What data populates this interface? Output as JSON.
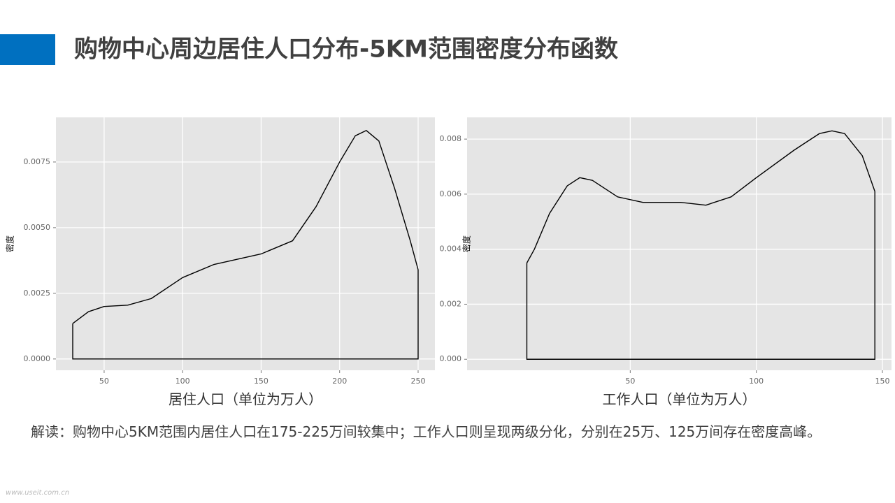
{
  "header": {
    "title": "购物中心周边居住人口分布-5KM范围密度分布函数"
  },
  "chart_data": [
    {
      "type": "line",
      "x_label": "居住人口（单位为万人）",
      "y_label": "密度",
      "color": "#000000",
      "grid": true,
      "x": [
        30,
        40,
        50,
        65,
        80,
        100,
        120,
        150,
        170,
        185,
        200,
        210,
        217,
        225,
        235,
        245,
        250
      ],
      "values": [
        0.00135,
        0.0018,
        0.002,
        0.00205,
        0.0023,
        0.0031,
        0.0036,
        0.004,
        0.0045,
        0.0058,
        0.0075,
        0.0085,
        0.0087,
        0.0083,
        0.0065,
        0.0045,
        0.0034
      ],
      "xlim": [
        19.3,
        260.7
      ],
      "ylim": [
        -0.00043,
        0.0092
      ],
      "xticks": [
        50,
        100,
        150,
        200,
        250
      ],
      "yticks": [
        {
          "value": 0,
          "label": "0.0000"
        },
        {
          "value": 0.0025,
          "label": "0.0025"
        },
        {
          "value": 0.005,
          "label": "0.0050"
        },
        {
          "value": 0.0075,
          "label": "0.0075"
        }
      ]
    },
    {
      "type": "line",
      "x_label": "工作人口（单位为万人）",
      "y_label": "密度",
      "color": "#000000",
      "grid": true,
      "x": [
        9,
        12,
        18,
        25,
        30,
        35,
        45,
        55,
        70,
        80,
        90,
        100,
        115,
        125,
        130,
        135,
        142,
        147
      ],
      "values": [
        0.0035,
        0.004,
        0.0053,
        0.0063,
        0.0066,
        0.0065,
        0.0059,
        0.0057,
        0.0057,
        0.0056,
        0.0059,
        0.0066,
        0.0076,
        0.0082,
        0.0083,
        0.0082,
        0.0074,
        0.0061
      ],
      "xlim": [
        -14.7,
        153.6
      ],
      "ylim": [
        -0.0004,
        0.00879
      ],
      "xticks": [
        50,
        100,
        150
      ],
      "yticks": [
        {
          "value": 0,
          "label": "0.000"
        },
        {
          "value": 0.002,
          "label": "0.002"
        },
        {
          "value": 0.004,
          "label": "0.004"
        },
        {
          "value": 0.006,
          "label": "0.006"
        },
        {
          "value": 0.008,
          "label": "0.008"
        }
      ]
    }
  ],
  "description": "解读：购物中心5KM范围内居住人口在175-225万间较集中；工作人口则呈现两级分化，分别在25万、125万间存在密度高峰。",
  "watermark": "www.useit.com.cn"
}
